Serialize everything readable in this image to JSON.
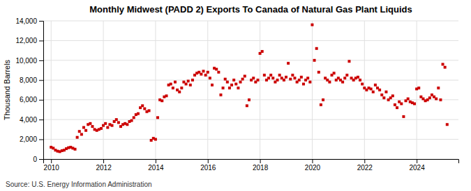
{
  "chart_data": {
    "type": "scatter",
    "title": "Monthly Midwest (PADD 2) Exports To Canada of Natural Gas Plant Liquids",
    "ylabel": "Thousand Barrels",
    "annotations": [
      "Source: U.S. Energy Information Administration"
    ],
    "color": "#cc0000",
    "marker": "square",
    "grid": true,
    "xlim": [
      2009.7,
      2025.6
    ],
    "xticks": [
      2010,
      2012,
      2014,
      2016,
      2018,
      2020,
      2022,
      2024
    ],
    "ylim": [
      0,
      14000
    ],
    "yticks": [
      0,
      {
        "value": 2000,
        "label": "2,000"
      },
      {
        "value": 4000,
        "label": "4,000"
      },
      {
        "value": 6000,
        "label": "6,000"
      },
      {
        "value": 8000,
        "label": "8,000"
      },
      {
        "value": 10000,
        "label": "10,000"
      },
      {
        "value": 12000,
        "label": "12,000"
      },
      {
        "value": 14000,
        "label": "14,000"
      }
    ],
    "x": [
      2010.0,
      2010.083,
      2010.167,
      2010.25,
      2010.333,
      2010.417,
      2010.5,
      2010.583,
      2010.667,
      2010.75,
      2010.833,
      2010.917,
      2011.0,
      2011.083,
      2011.167,
      2011.25,
      2011.333,
      2011.417,
      2011.5,
      2011.583,
      2011.667,
      2011.75,
      2011.833,
      2011.917,
      2012.0,
      2012.083,
      2012.167,
      2012.25,
      2012.333,
      2012.417,
      2012.5,
      2012.583,
      2012.667,
      2012.75,
      2012.833,
      2012.917,
      2013.0,
      2013.083,
      2013.167,
      2013.25,
      2013.333,
      2013.417,
      2013.5,
      2013.583,
      2013.667,
      2013.75,
      2013.833,
      2013.917,
      2014.0,
      2014.083,
      2014.167,
      2014.25,
      2014.333,
      2014.417,
      2014.5,
      2014.583,
      2014.667,
      2014.75,
      2014.833,
      2014.917,
      2015.0,
      2015.083,
      2015.167,
      2015.25,
      2015.333,
      2015.417,
      2015.5,
      2015.583,
      2015.667,
      2015.75,
      2015.833,
      2015.917,
      2016.0,
      2016.083,
      2016.167,
      2016.25,
      2016.333,
      2016.417,
      2016.5,
      2016.583,
      2016.667,
      2016.75,
      2016.833,
      2016.917,
      2017.0,
      2017.083,
      2017.167,
      2017.25,
      2017.333,
      2017.417,
      2017.5,
      2017.583,
      2017.667,
      2017.75,
      2017.833,
      2017.917,
      2018.0,
      2018.083,
      2018.167,
      2018.25,
      2018.333,
      2018.417,
      2018.5,
      2018.583,
      2018.667,
      2018.75,
      2018.833,
      2018.917,
      2019.0,
      2019.083,
      2019.167,
      2019.25,
      2019.333,
      2019.417,
      2019.5,
      2019.583,
      2019.667,
      2019.75,
      2019.833,
      2019.917,
      2020.0,
      2020.083,
      2020.167,
      2020.25,
      2020.333,
      2020.417,
      2020.5,
      2020.583,
      2020.667,
      2020.75,
      2020.833,
      2020.917,
      2021.0,
      2021.083,
      2021.167,
      2021.25,
      2021.333,
      2021.417,
      2021.5,
      2021.583,
      2021.667,
      2021.75,
      2021.833,
      2021.917,
      2022.0,
      2022.083,
      2022.167,
      2022.25,
      2022.333,
      2022.417,
      2022.5,
      2022.583,
      2022.667,
      2022.75,
      2022.833,
      2022.917,
      2023.0,
      2023.083,
      2023.167,
      2023.25,
      2023.333,
      2023.417,
      2023.5,
      2023.583,
      2023.667,
      2023.75,
      2023.833,
      2023.917,
      2024.0,
      2024.083,
      2024.167,
      2024.25,
      2024.333,
      2024.417,
      2024.5,
      2024.583,
      2024.667,
      2024.75,
      2024.833,
      2024.917,
      2025.0,
      2025.083,
      2025.167
    ],
    "values": [
      1200,
      1100,
      900,
      800,
      750,
      850,
      900,
      1050,
      1150,
      1200,
      1100,
      1000,
      2200,
      2800,
      2500,
      3200,
      2900,
      3500,
      3600,
      3300,
      3000,
      2900,
      3000,
      3100,
      3400,
      3600,
      3200,
      3500,
      3400,
      3800,
      4000,
      3700,
      3300,
      3500,
      3600,
      3500,
      3800,
      3900,
      4200,
      4500,
      4600,
      5200,
      5400,
      5100,
      4800,
      4900,
      1900,
      2100,
      2000,
      4200,
      6000,
      5900,
      6300,
      6400,
      7500,
      7600,
      7200,
      7800,
      7000,
      6800,
      7200,
      7800,
      7600,
      7900,
      7500,
      8000,
      8500,
      8700,
      8800,
      8600,
      8900,
      8500,
      8800,
      8200,
      7500,
      9200,
      9100,
      8800,
      6500,
      7200,
      8100,
      7800,
      7200,
      7500,
      8000,
      7600,
      7200,
      7800,
      8100,
      8400,
      5400,
      6000,
      8000,
      8200,
      7800,
      8000,
      10700,
      10900,
      8500,
      8000,
      8200,
      8500,
      8200,
      7800,
      8000,
      8500,
      8200,
      8000,
      8300,
      9700,
      8100,
      8500,
      8200,
      7800,
      8000,
      8300,
      7600,
      8000,
      8200,
      7800,
      13600,
      10000,
      11200,
      8800,
      5500,
      6000,
      8200,
      8000,
      7800,
      8500,
      8700,
      8000,
      8200,
      8000,
      7800,
      8200,
      8500,
      9900,
      8200,
      8000,
      8200,
      8300,
      8000,
      7600,
      7200,
      7000,
      7200,
      7100,
      6800,
      7500,
      7200,
      7000,
      6500,
      6200,
      6800,
      6000,
      6200,
      6400,
      5500,
      5200,
      5800,
      5600,
      4300,
      5900,
      6100,
      5800,
      5700,
      5600,
      7100,
      7200,
      6300,
      6100,
      5900,
      6000,
      6200,
      6500,
      6300,
      6100,
      7200,
      6000,
      9600,
      9300,
      3500
    ]
  }
}
